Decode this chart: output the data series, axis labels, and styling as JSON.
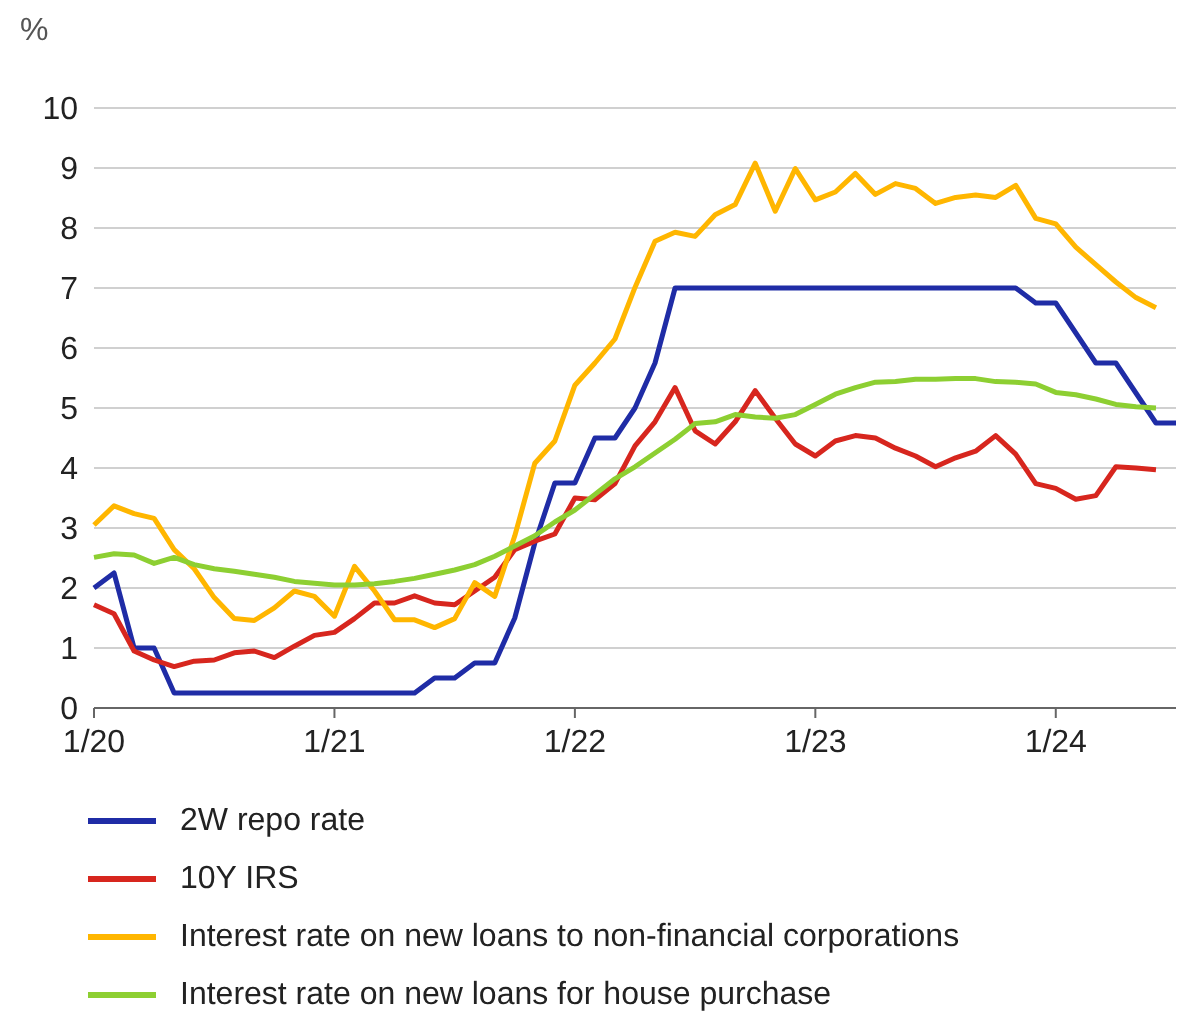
{
  "chart_data": {
    "type": "line",
    "ylabel": "%",
    "categories": [
      "1/20",
      null,
      null,
      null,
      null,
      null,
      null,
      null,
      null,
      null,
      null,
      null,
      "1/21",
      null,
      null,
      null,
      null,
      null,
      null,
      null,
      null,
      null,
      null,
      null,
      "1/22",
      null,
      null,
      null,
      null,
      null,
      null,
      null,
      null,
      null,
      null,
      null,
      "1/23",
      null,
      null,
      null,
      null,
      null,
      null,
      null,
      null,
      null,
      null,
      null,
      "1/24",
      null,
      null,
      null,
      null,
      null,
      null
    ],
    "ylim": [
      0,
      10
    ],
    "yticks": [
      0,
      1,
      2,
      3,
      4,
      5,
      6,
      7,
      8,
      9,
      10
    ],
    "grid": "y",
    "legend": "bottom",
    "marker": "none",
    "line_style": "solid",
    "series": [
      {
        "name": "2W repo rate",
        "color": "#1f2ca6",
        "values": [
          2.0,
          2.25,
          1.0,
          1.0,
          0.25,
          0.25,
          0.25,
          0.25,
          0.25,
          0.25,
          0.25,
          0.25,
          0.25,
          0.25,
          0.25,
          0.25,
          0.25,
          0.5,
          0.5,
          0.75,
          0.75,
          1.5,
          2.75,
          3.75,
          3.75,
          4.5,
          4.5,
          5.0,
          5.75,
          7.0,
          7.0,
          7.0,
          7.0,
          7.0,
          7.0,
          7.0,
          7.0,
          7.0,
          7.0,
          7.0,
          7.0,
          7.0,
          7.0,
          7.0,
          7.0,
          7.0,
          7.0,
          6.75,
          6.75,
          6.25,
          5.75,
          5.75,
          5.25,
          4.75,
          4.75
        ]
      },
      {
        "name": "10Y IRS",
        "color": "#d7261e",
        "values": [
          1.72,
          1.57,
          0.95,
          0.8,
          0.69,
          0.78,
          0.8,
          0.92,
          0.95,
          0.84,
          1.03,
          1.21,
          1.26,
          1.49,
          1.75,
          1.75,
          1.87,
          1.75,
          1.72,
          1.95,
          2.18,
          2.64,
          2.78,
          2.9,
          3.5,
          3.47,
          3.74,
          4.37,
          4.77,
          5.34,
          4.62,
          4.4,
          4.77,
          5.29,
          4.83,
          4.4,
          4.2,
          4.45,
          4.54,
          4.5,
          4.33,
          4.2,
          4.02,
          4.17,
          4.28,
          4.54,
          4.23,
          3.74,
          3.66,
          3.48,
          3.54,
          4.02,
          4.0,
          3.97,
          null
        ]
      },
      {
        "name": "Interest rate on new loans to non-financial corporations",
        "color": "#ffb600",
        "values": [
          3.05,
          3.37,
          3.24,
          3.16,
          2.64,
          2.32,
          1.84,
          1.49,
          1.46,
          1.67,
          1.95,
          1.86,
          1.53,
          2.36,
          1.95,
          1.47,
          1.47,
          1.34,
          1.49,
          2.09,
          1.86,
          2.87,
          4.08,
          4.45,
          5.38,
          5.75,
          6.15,
          7.01,
          7.78,
          7.93,
          7.86,
          8.22,
          8.39,
          9.08,
          8.28,
          8.99,
          8.47,
          8.6,
          8.91,
          8.56,
          8.74,
          8.66,
          8.41,
          8.51,
          8.55,
          8.51,
          8.71,
          8.16,
          8.07,
          7.68,
          7.39,
          7.1,
          6.84,
          6.67,
          null
        ]
      },
      {
        "name": "Interest rate on new loans for house purchase",
        "color": "#8dcf32",
        "values": [
          2.51,
          2.57,
          2.55,
          2.41,
          2.51,
          2.39,
          2.32,
          2.28,
          2.23,
          2.18,
          2.11,
          2.08,
          2.05,
          2.05,
          2.07,
          2.11,
          2.16,
          2.23,
          2.3,
          2.39,
          2.53,
          2.7,
          2.87,
          3.1,
          3.3,
          3.56,
          3.82,
          4.02,
          4.25,
          4.48,
          4.74,
          4.77,
          4.89,
          4.85,
          4.83,
          4.89,
          5.06,
          5.23,
          5.34,
          5.43,
          5.44,
          5.48,
          5.48,
          5.49,
          5.49,
          5.44,
          5.43,
          5.4,
          5.26,
          5.22,
          5.15,
          5.06,
          5.02,
          5.0,
          null
        ]
      }
    ]
  }
}
